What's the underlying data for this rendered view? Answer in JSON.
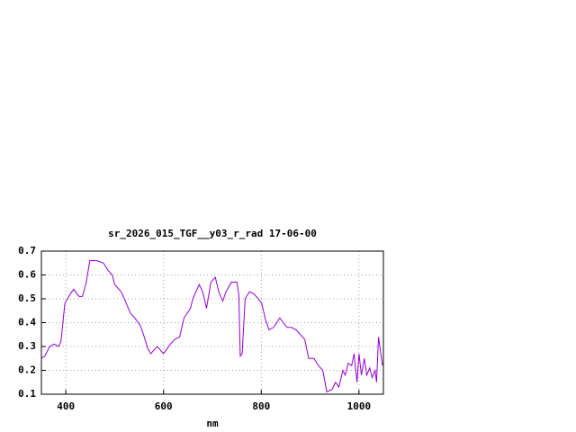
{
  "chart_data": {
    "type": "line",
    "title": "sr_2026_015_TGF__y03_r_rad 17-06-00",
    "x_label": "nm",
    "x": [
      350,
      357,
      367,
      376,
      385,
      390,
      398,
      409,
      416,
      427,
      434,
      442,
      449,
      464,
      477,
      486,
      495,
      500,
      513,
      522,
      532,
      541,
      552,
      559,
      568,
      574,
      587,
      600,
      614,
      623,
      633,
      642,
      655,
      660,
      673,
      680,
      688,
      697,
      706,
      713,
      721,
      728,
      739,
      750,
      754,
      757,
      761,
      767,
      776,
      785,
      794,
      801,
      809,
      816,
      825,
      838,
      845,
      853,
      862,
      871,
      880,
      889,
      897,
      908,
      917,
      926,
      934,
      945,
      952,
      959,
      967,
      972,
      978,
      985,
      990,
      996,
      1000,
      1005,
      1011,
      1016,
      1022,
      1027,
      1033,
      1036,
      1040,
      1044,
      1048
    ],
    "series": [
      {
        "color": "#9400d3",
        "values": [
          0.25,
          0.26,
          0.3,
          0.31,
          0.3,
          0.32,
          0.48,
          0.52,
          0.54,
          0.51,
          0.51,
          0.57,
          0.66,
          0.66,
          0.65,
          0.62,
          0.6,
          0.56,
          0.53,
          0.49,
          0.44,
          0.42,
          0.39,
          0.35,
          0.29,
          0.27,
          0.3,
          0.27,
          0.31,
          0.33,
          0.34,
          0.42,
          0.46,
          0.5,
          0.56,
          0.53,
          0.46,
          0.57,
          0.59,
          0.53,
          0.49,
          0.53,
          0.57,
          0.57,
          0.52,
          0.26,
          0.27,
          0.5,
          0.53,
          0.52,
          0.5,
          0.48,
          0.41,
          0.37,
          0.38,
          0.42,
          0.4,
          0.38,
          0.38,
          0.37,
          0.35,
          0.33,
          0.25,
          0.25,
          0.22,
          0.2,
          0.11,
          0.12,
          0.15,
          0.13,
          0.2,
          0.18,
          0.23,
          0.22,
          0.27,
          0.15,
          0.27,
          0.18,
          0.25,
          0.18,
          0.21,
          0.17,
          0.2,
          0.15,
          0.34,
          0.28,
          0.22
        ]
      }
    ],
    "xlim": [
      350,
      1050
    ],
    "ylim": [
      0.1,
      0.7
    ],
    "xticks": [
      400,
      600,
      800,
      1000
    ],
    "yticks": [
      0.1,
      0.2,
      0.3,
      0.4,
      0.5,
      0.6,
      0.7
    ],
    "grid": true
  }
}
